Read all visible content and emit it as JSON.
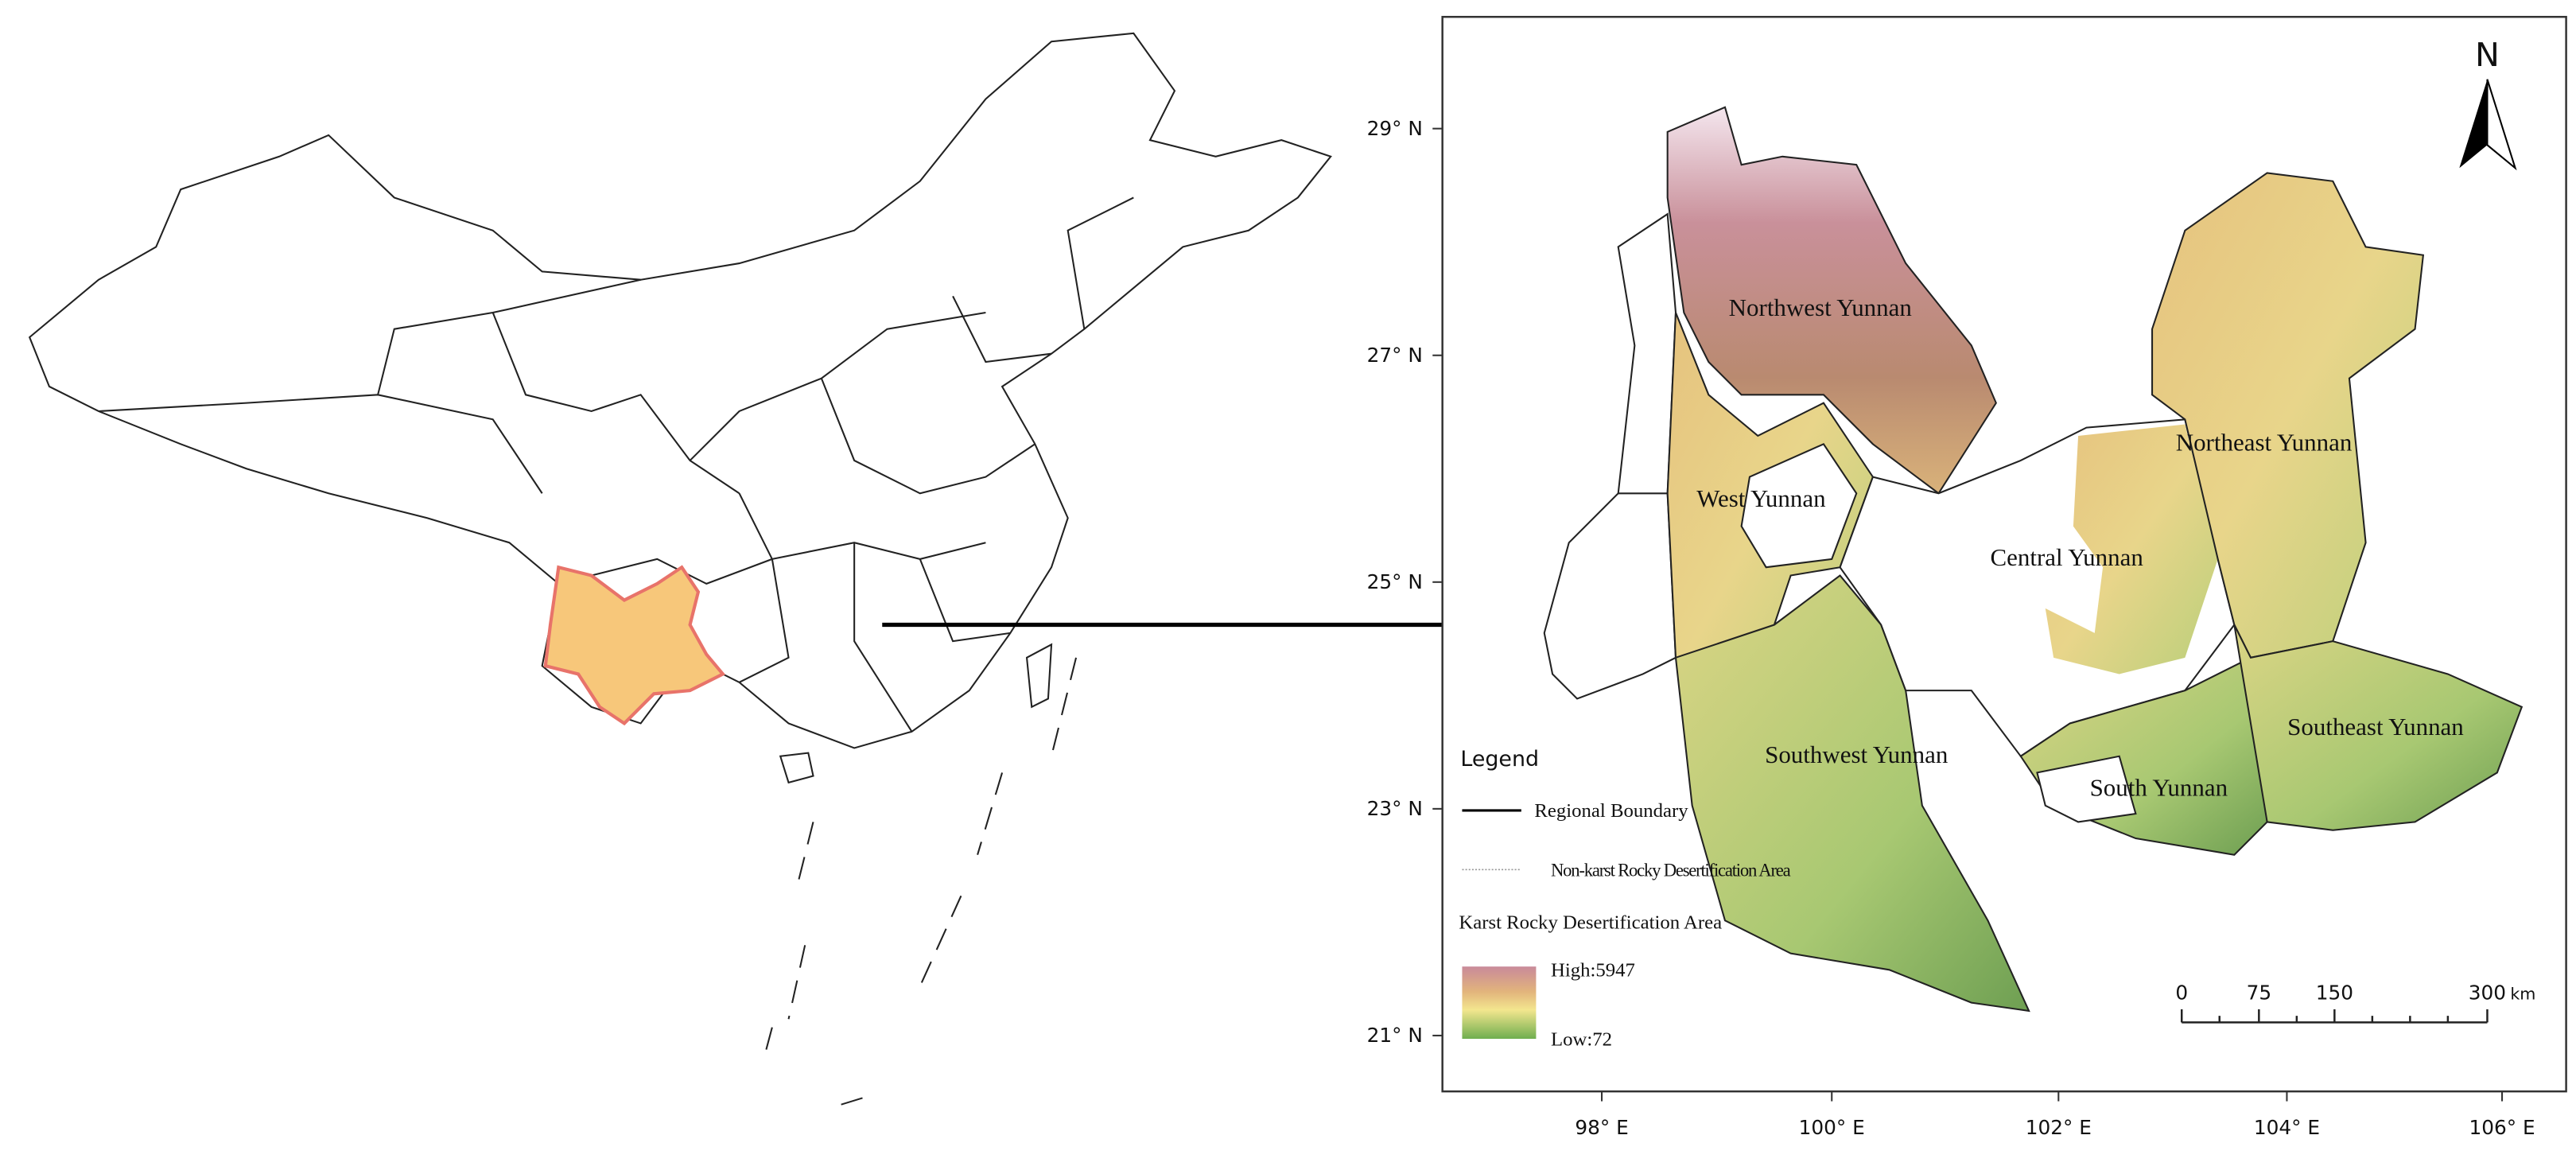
{
  "north_arrow": "N",
  "regions": [
    "Northwest Yunnan",
    "West Yunnan",
    "Central Yunnan",
    "Northeast Yunnan",
    "Southwest Yunnan",
    "South Yunnan",
    "Southeast Yunnan"
  ],
  "latitude_labels": [
    "29° N",
    "27° N",
    "25° N",
    "23° N",
    "21° N"
  ],
  "longitude_labels": [
    "98° E",
    "100° E",
    "102° E",
    "104° E",
    "106° E"
  ],
  "legend": {
    "title": "Legend",
    "items": [
      "Regional Boundary",
      "Non-karst Rocky Desertification Area",
      "Karst Rocky Desertification Area"
    ],
    "elevation_high": "High:5947",
    "elevation_low": "Low:72"
  },
  "scale_bar": {
    "labels": [
      "0",
      "75",
      "150",
      "300"
    ],
    "unit": "km"
  }
}
